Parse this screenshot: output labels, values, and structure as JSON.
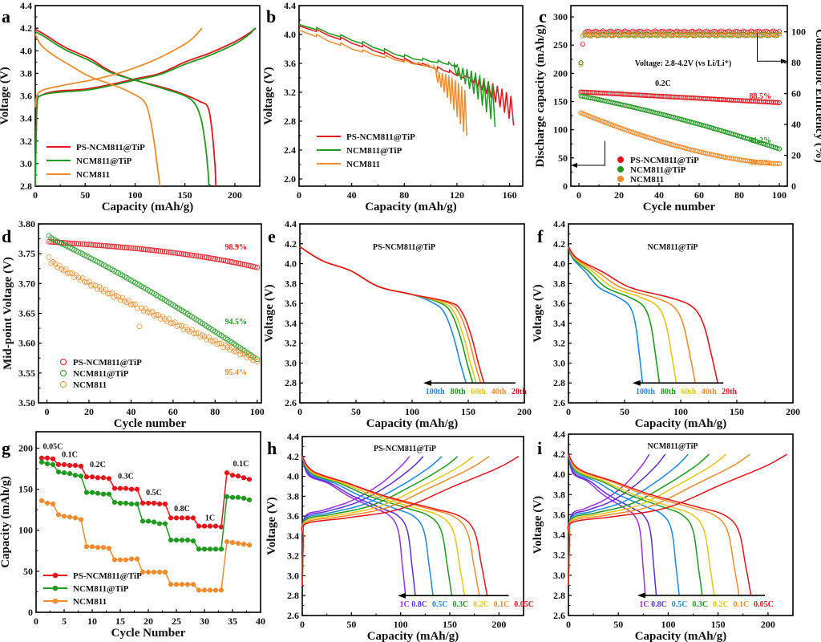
{
  "colors": {
    "red": "#e8141b",
    "green": "#1f9a1f",
    "orange": "#f08c2e",
    "blue": "#1e88e5",
    "yellow": "#e6c619",
    "violet": "#9b30e0",
    "indigo": "#5b2fd6",
    "black": "#000000"
  },
  "chart_data": [
    {
      "id": "a",
      "type": "line",
      "panel_letter": "a",
      "xlabel": "Capacity (mAh/g)",
      "ylabel": "Voltage (V)",
      "xlim": [
        0,
        225
      ],
      "ylim": [
        2.8,
        4.4
      ],
      "xticks": [
        0,
        50,
        100,
        150,
        200
      ],
      "yticks": [
        2.8,
        3.0,
        3.2,
        3.4,
        3.6,
        3.8,
        4.0,
        4.2,
        4.4
      ],
      "legend_position": "bottom-left",
      "series": [
        {
          "name": "PS-NCM811@TiP",
          "color": "red",
          "charge": [
            [
              0,
              2.8
            ],
            [
              1,
              3.3
            ],
            [
              2,
              3.55
            ],
            [
              5,
              3.6
            ],
            [
              20,
              3.64
            ],
            [
              50,
              3.66
            ],
            [
              75,
              3.7
            ],
            [
              100,
              3.75
            ],
            [
              125,
              3.8
            ],
            [
              150,
              3.9
            ],
            [
              175,
              3.98
            ],
            [
              200,
              4.08
            ],
            [
              215,
              4.16
            ],
            [
              221,
              4.2
            ]
          ],
          "discharge": [
            [
              0,
              4.19
            ],
            [
              10,
              4.14
            ],
            [
              30,
              4.03
            ],
            [
              55,
              3.93
            ],
            [
              75,
              3.82
            ],
            [
              100,
              3.74
            ],
            [
              130,
              3.67
            ],
            [
              150,
              3.61
            ],
            [
              165,
              3.55
            ],
            [
              173,
              3.5
            ],
            [
              177,
              3.3
            ],
            [
              180,
              3.0
            ],
            [
              181,
              2.8
            ]
          ]
        },
        {
          "name": "NCM811@TiP",
          "color": "green",
          "charge": [
            [
              0,
              2.8
            ],
            [
              1,
              3.3
            ],
            [
              2,
              3.55
            ],
            [
              5,
              3.6
            ],
            [
              20,
              3.63
            ],
            [
              50,
              3.65
            ],
            [
              75,
              3.69
            ],
            [
              100,
              3.74
            ],
            [
              125,
              3.79
            ],
            [
              150,
              3.88
            ],
            [
              175,
              3.96
            ],
            [
              200,
              4.06
            ],
            [
              215,
              4.15
            ],
            [
              220,
              4.2
            ]
          ],
          "discharge": [
            [
              0,
              4.17
            ],
            [
              10,
              4.12
            ],
            [
              30,
              4.01
            ],
            [
              55,
              3.91
            ],
            [
              75,
              3.81
            ],
            [
              100,
              3.74
            ],
            [
              130,
              3.66
            ],
            [
              150,
              3.6
            ],
            [
              160,
              3.53
            ],
            [
              166,
              3.4
            ],
            [
              170,
              3.2
            ],
            [
              173,
              2.95
            ],
            [
              174,
              2.8
            ]
          ]
        },
        {
          "name": "NCM811",
          "color": "orange",
          "charge": [
            [
              0,
              3.5
            ],
            [
              1,
              3.58
            ],
            [
              5,
              3.64
            ],
            [
              20,
              3.68
            ],
            [
              50,
              3.73
            ],
            [
              75,
              3.78
            ],
            [
              100,
              3.85
            ],
            [
              125,
              3.94
            ],
            [
              150,
              4.06
            ],
            [
              160,
              4.13
            ],
            [
              167,
              4.2
            ]
          ],
          "discharge": [
            [
              0,
              4.15
            ],
            [
              5,
              4.06
            ],
            [
              15,
              3.98
            ],
            [
              35,
              3.87
            ],
            [
              55,
              3.77
            ],
            [
              80,
              3.69
            ],
            [
              100,
              3.61
            ],
            [
              110,
              3.54
            ],
            [
              115,
              3.4
            ],
            [
              119,
              3.2
            ],
            [
              122,
              3.0
            ],
            [
              125,
              2.8
            ]
          ]
        }
      ]
    },
    {
      "id": "b",
      "type": "line",
      "panel_letter": "b",
      "xlabel": "Capacity (mAh/g)",
      "ylabel": "Voltage (V)",
      "xlim": [
        0,
        170
      ],
      "ylim": [
        1.9,
        4.4
      ],
      "xticks": [
        0,
        40,
        80,
        120,
        160
      ],
      "yticks": [
        2.0,
        2.4,
        2.8,
        3.2,
        3.6,
        4.0,
        4.4
      ],
      "legend_position": "bottom-left",
      "series": [
        {
          "name": "PS-NCM811@TiP",
          "color": "red",
          "start": [
            0,
            4.12
          ],
          "mid": [
            [
              40,
              3.88
            ],
            [
              80,
              3.64
            ],
            [
              110,
              3.5
            ],
            [
              125,
              3.4
            ]
          ],
          "pulse_start": 130,
          "end": [
            161,
            2.74
          ],
          "pulse_depth": 0.35
        },
        {
          "name": "NCM811@TiP",
          "color": "green",
          "start": [
            0,
            4.14
          ],
          "mid": [
            [
              40,
              3.92
            ],
            [
              80,
              3.69
            ],
            [
              110,
              3.6
            ],
            [
              120,
              3.55
            ]
          ],
          "pulse_start": 118,
          "end": [
            147,
            2.72
          ],
          "pulse_depth": 0.5
        },
        {
          "name": "NCM811",
          "color": "orange",
          "start": [
            0,
            4.06
          ],
          "mid": [
            [
              40,
              3.8
            ],
            [
              80,
              3.62
            ],
            [
              100,
              3.55
            ],
            [
              105,
              3.48
            ]
          ],
          "pulse_start": 104,
          "end": [
            126,
            2.6
          ],
          "pulse_depth": 0.6
        }
      ]
    },
    {
      "id": "c",
      "type": "scatter",
      "panel_letter": "c",
      "xlabel": "Cycle number",
      "ylabel": "Discharge capacity (mAh/g)",
      "ylabel_right": "Coulombic Efficiency (%)",
      "xlim": [
        -4,
        104
      ],
      "ylim": [
        0,
        320
      ],
      "ylim_right": [
        0,
        117
      ],
      "xticks": [
        0,
        20,
        40,
        60,
        80,
        100
      ],
      "yticks": [
        0,
        50,
        100,
        150,
        200,
        250,
        300
      ],
      "yticks_right": [
        0,
        20,
        40,
        60,
        80,
        100
      ],
      "annotations": [
        "Voltage: 2.8-4.2V  (vs Li/Li⁺)",
        "0.2C"
      ],
      "retention_labels": [
        {
          "text": "88.5%",
          "color": "red"
        },
        {
          "text": "41.2%",
          "color": "green"
        },
        {
          "text": "30.5%",
          "color": "orange"
        }
      ],
      "legend_position": "bottom-left",
      "series": [
        {
          "name": "PS-NCM811@TiP",
          "color": "red",
          "capacity_start": 167,
          "capacity_end": 148,
          "ce_first": 80,
          "ce_second": 92,
          "ce_steady": 100
        },
        {
          "name": "NCM811@TiP",
          "color": "green",
          "capacity_start": 160,
          "capacity_end": 66,
          "ce_first": 80,
          "ce_steady": 98
        },
        {
          "name": "NCM811",
          "color": "orange",
          "capacity_start": 130,
          "capacity_end": 40,
          "ce_first": 79,
          "ce_steady": 98
        }
      ]
    },
    {
      "id": "d",
      "type": "scatter",
      "panel_letter": "d",
      "xlabel": "Cycle number",
      "ylabel": "Mid-point Voltage (V)",
      "xlim": [
        -4,
        102
      ],
      "ylim": [
        3.5,
        3.8
      ],
      "xticks": [
        0,
        20,
        40,
        60,
        80,
        100
      ],
      "yticks": [
        3.5,
        3.55,
        3.6,
        3.65,
        3.7,
        3.75,
        3.8
      ],
      "retention_labels": [
        {
          "text": "98.9%",
          "color": "red"
        },
        {
          "text": "94.5%",
          "color": "green"
        },
        {
          "text": "95.4%",
          "color": "orange"
        }
      ],
      "legend_position": "bottom-left",
      "series": [
        {
          "name": "PS-NCM811@TiP",
          "color": "red",
          "start": 3.77,
          "end": 3.727
        },
        {
          "name": "NCM811@TiP",
          "color": "green",
          "start": 3.78,
          "end": 3.573
        },
        {
          "name": "NCM811",
          "color": "orange",
          "start": 3.742,
          "end": 3.571
        }
      ]
    },
    {
      "id": "e",
      "type": "line",
      "panel_letter": "e",
      "title": "PS-NCM811@TiP",
      "xlabel": "Capacity (mAh/g)",
      "ylabel": "Voltage (V)",
      "xlim": [
        0,
        200
      ],
      "ylim": [
        2.6,
        4.4
      ],
      "xticks": [
        0,
        50,
        100,
        150,
        200
      ],
      "yticks": [
        2.6,
        2.8,
        3.0,
        3.2,
        3.4,
        3.6,
        3.8,
        4.0,
        4.2,
        4.4
      ],
      "cycle_labels": [
        {
          "text": "100th",
          "color": "blue",
          "end": 148
        },
        {
          "text": "80th",
          "color": "green",
          "end": 154
        },
        {
          "text": "60th",
          "color": "yellow",
          "end": 157
        },
        {
          "text": "40th",
          "color": "orange",
          "end": 161
        },
        {
          "text": "20th",
          "color": "red",
          "end": 164
        }
      ]
    },
    {
      "id": "f",
      "type": "line",
      "panel_letter": "f",
      "title": "NCM811@TiP",
      "xlabel": "Capacity (mAh/g)",
      "ylabel": "Voltage (V)",
      "xlim": [
        0,
        200
      ],
      "ylim": [
        2.6,
        4.4
      ],
      "xticks": [
        0,
        50,
        100,
        150,
        200
      ],
      "yticks": [
        2.6,
        2.8,
        3.0,
        3.2,
        3.4,
        3.6,
        3.8,
        4.0,
        4.2,
        4.4
      ],
      "cycle_labels": [
        {
          "text": "100th",
          "color": "blue",
          "end": 66
        },
        {
          "text": "80th",
          "color": "green",
          "end": 81
        },
        {
          "text": "60th",
          "color": "yellow",
          "end": 96
        },
        {
          "text": "40th",
          "color": "orange",
          "end": 113
        },
        {
          "text": "20th",
          "color": "red",
          "end": 133
        }
      ]
    },
    {
      "id": "g",
      "type": "line",
      "panel_letter": "g",
      "xlabel": "Cycle Number",
      "ylabel": "Capacity (mAh/g)",
      "xlim": [
        0,
        40
      ],
      "ylim": [
        0,
        220
      ],
      "xticks": [
        0,
        5,
        10,
        15,
        20,
        25,
        30,
        35,
        40
      ],
      "yticks": [
        0,
        50,
        100,
        150,
        200
      ],
      "rate_labels": [
        {
          "text": "0.05C",
          "x": 3,
          "y": 199
        },
        {
          "text": "0.1C",
          "x": 6,
          "y": 189
        },
        {
          "text": "0.2C",
          "x": 11,
          "y": 177
        },
        {
          "text": "0.3C",
          "x": 16,
          "y": 163
        },
        {
          "text": "0.5C",
          "x": 21,
          "y": 143
        },
        {
          "text": "0.8C",
          "x": 26,
          "y": 123
        },
        {
          "text": "1C",
          "x": 31,
          "y": 112
        },
        {
          "text": "0.1C",
          "x": 36.5,
          "y": 178
        }
      ],
      "legend_position": "bottom-left",
      "series": [
        {
          "name": "PS-NCM811@TiP",
          "color": "red",
          "values": [
            188,
            188,
            187,
            180,
            180,
            179,
            179,
            178,
            165,
            165,
            164,
            164,
            163,
            151,
            151,
            151,
            150,
            150,
            133,
            133,
            133,
            132,
            132,
            115,
            115,
            115,
            115,
            115,
            105,
            105,
            105,
            105,
            104,
            170,
            167,
            166,
            164,
            162
          ]
        },
        {
          "name": "NCM811@TiP",
          "color": "green",
          "values": [
            183,
            181,
            180,
            171,
            170,
            169,
            167,
            166,
            146,
            146,
            145,
            144,
            144,
            134,
            133,
            133,
            132,
            132,
            111,
            111,
            110,
            108,
            108,
            88,
            88,
            88,
            88,
            87,
            77,
            77,
            77,
            77,
            77,
            141,
            140,
            140,
            139,
            137
          ]
        },
        {
          "name": "NCM811",
          "color": "orange",
          "values": [
            136,
            133,
            132,
            119,
            117,
            116,
            115,
            113,
            80,
            80,
            79,
            79,
            78,
            64,
            64,
            64,
            65,
            65,
            49,
            49,
            49,
            49,
            49,
            34,
            34,
            34,
            34,
            34,
            27,
            27,
            27,
            27,
            27,
            86,
            85,
            84,
            83,
            82
          ]
        }
      ]
    },
    {
      "id": "h",
      "type": "line",
      "panel_letter": "h",
      "title": "PS-NCM811@TiP",
      "xlabel": "Capacity (mAh/g)",
      "ylabel": "Voltage (V)",
      "xlim": [
        0,
        225
      ],
      "ylim": [
        2.6,
        4.4
      ],
      "xticks": [
        0,
        50,
        100,
        150,
        200
      ],
      "yticks": [
        2.6,
        2.8,
        3.0,
        3.2,
        3.4,
        3.6,
        3.8,
        4.0,
        4.2,
        4.4
      ],
      "rate_curves": [
        {
          "text": "1C",
          "color": "violet",
          "discharge_end": 105,
          "charge_end": 109
        },
        {
          "text": "0.8C",
          "color": "indigo",
          "discharge_end": 115,
          "charge_end": 123
        },
        {
          "text": "0.5C",
          "color": "blue",
          "discharge_end": 133,
          "charge_end": 142
        },
        {
          "text": "0.3C",
          "color": "green",
          "discharge_end": 152,
          "charge_end": 158
        },
        {
          "text": "0.2C",
          "color": "yellow",
          "discharge_end": 165,
          "charge_end": 174
        },
        {
          "text": "0.1C",
          "color": "orange",
          "discharge_end": 180,
          "charge_end": 190
        },
        {
          "text": "0.05C",
          "color": "red",
          "discharge_end": 188,
          "charge_end": 220
        }
      ]
    },
    {
      "id": "i",
      "type": "line",
      "panel_letter": "i",
      "title": "NCM811@TiP",
      "xlabel": "Capacity (mAh/g)",
      "ylabel": "Voltage (V)",
      "xlim": [
        0,
        225
      ],
      "ylim": [
        2.6,
        4.4
      ],
      "xticks": [
        0,
        50,
        100,
        150,
        200
      ],
      "yticks": [
        2.6,
        2.8,
        3.0,
        3.2,
        3.4,
        3.6,
        3.8,
        4.0,
        4.2,
        4.4
      ],
      "rate_curves": [
        {
          "text": "1C",
          "color": "violet",
          "discharge_end": 77,
          "charge_end": 81
        },
        {
          "text": "0.8C",
          "color": "indigo",
          "discharge_end": 88,
          "charge_end": 97
        },
        {
          "text": "0.5C",
          "color": "blue",
          "discharge_end": 111,
          "charge_end": 120
        },
        {
          "text": "0.3C",
          "color": "green",
          "discharge_end": 134,
          "charge_end": 141
        },
        {
          "text": "0.2C",
          "color": "yellow",
          "discharge_end": 146,
          "charge_end": 158
        },
        {
          "text": "0.1C",
          "color": "orange",
          "discharge_end": 171,
          "charge_end": 182
        },
        {
          "text": "0.05C",
          "color": "red",
          "discharge_end": 183,
          "charge_end": 219
        }
      ]
    }
  ]
}
